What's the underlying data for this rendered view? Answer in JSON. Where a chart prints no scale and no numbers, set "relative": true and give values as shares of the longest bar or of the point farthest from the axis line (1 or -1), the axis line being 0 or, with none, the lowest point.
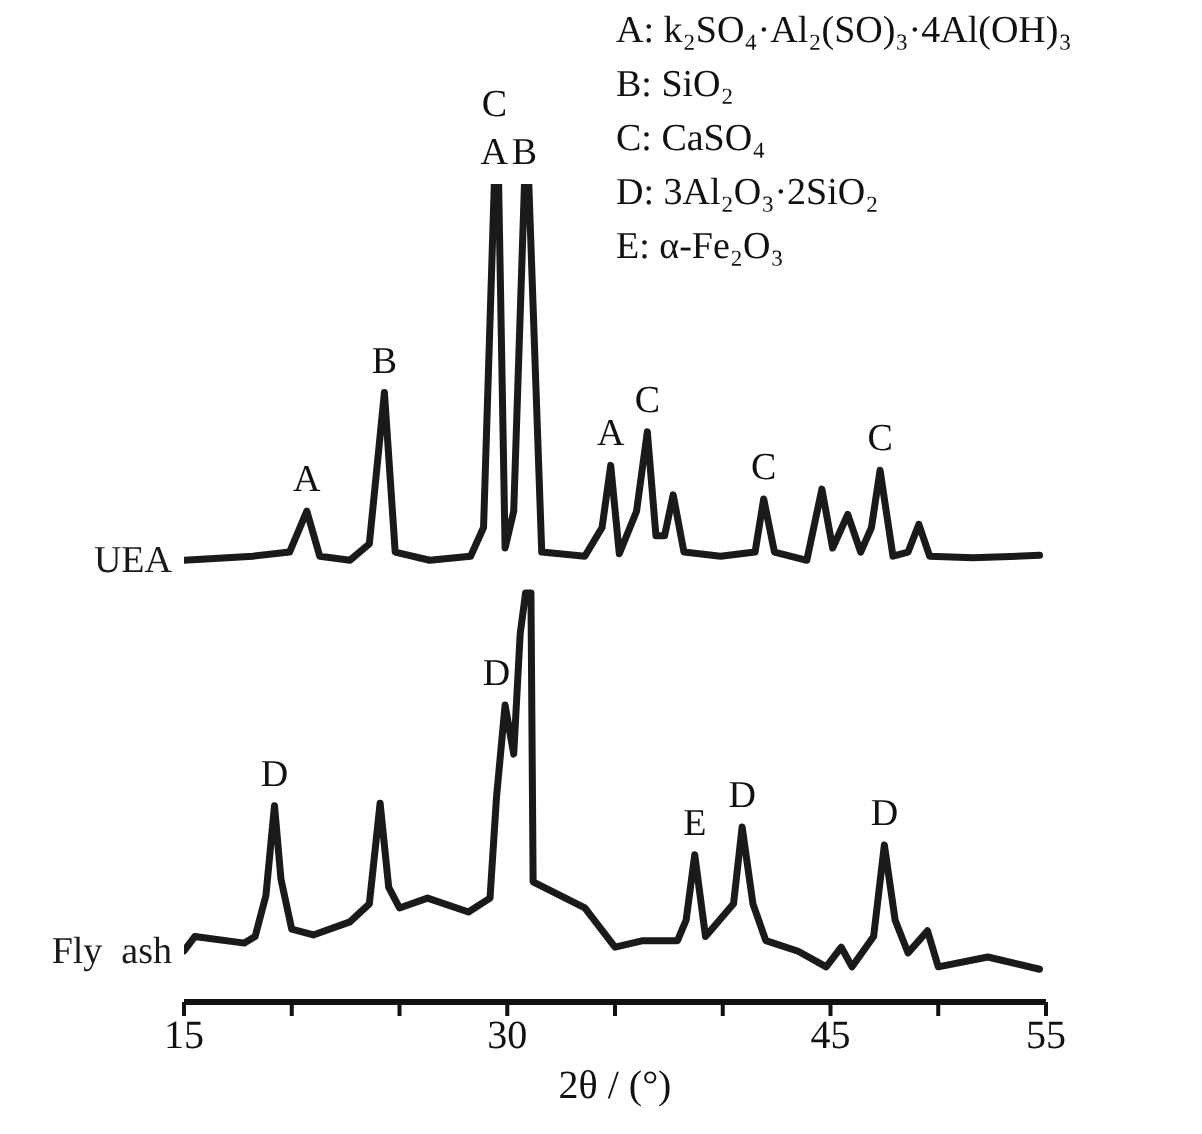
{
  "chart_data": {
    "type": "line",
    "relative": true,
    "xlabel": "2θ / (°)",
    "xlim": [
      15,
      55
    ],
    "xticks": [
      15,
      {
        "value": 20,
        "label": null
      },
      {
        "value": 25,
        "label": null
      },
      30,
      {
        "value": 35,
        "label": null
      },
      {
        "value": 40,
        "label": null
      },
      45,
      {
        "value": 50,
        "label": null
      },
      55
    ],
    "marker": "none",
    "legend": false,
    "series": [
      {
        "name": "UEA",
        "color": "#1a1a1a",
        "x": [
          15.0,
          18.2,
          19.9,
          20.7,
          21.3,
          22.7,
          23.6,
          24.3,
          24.8,
          26.4,
          28.3,
          28.9,
          29.4,
          29.6,
          29.9,
          30.3,
          30.8,
          31.0,
          31.6,
          33.6,
          34.4,
          34.8,
          35.2,
          36.0,
          36.5,
          36.9,
          37.3,
          37.7,
          38.2,
          39.9,
          41.5,
          41.9,
          42.4,
          43.9,
          44.6,
          45.1,
          45.8,
          46.4,
          46.9,
          47.3,
          47.9,
          48.6,
          49.1,
          49.6,
          51.6,
          54.7
        ],
        "values": [
          0.54,
          0.545,
          0.55,
          0.6,
          0.545,
          0.54,
          0.56,
          0.745,
          0.55,
          0.54,
          0.545,
          0.58,
          1.0,
          1.0,
          0.555,
          0.6,
          1.0,
          1.0,
          0.55,
          0.545,
          0.58,
          0.656,
          0.548,
          0.6,
          0.697,
          0.57,
          0.57,
          0.62,
          0.55,
          0.545,
          0.55,
          0.615,
          0.55,
          0.54,
          0.627,
          0.555,
          0.596,
          0.55,
          0.58,
          0.65,
          0.545,
          0.55,
          0.584,
          0.545,
          0.543,
          0.546
        ]
      },
      {
        "name": "Fly  ash",
        "color": "#1a1a1a",
        "x": [
          15.0,
          15.5,
          17.8,
          18.3,
          18.8,
          19.2,
          19.5,
          20.0,
          21.0,
          22.7,
          23.6,
          24.1,
          24.5,
          25.0,
          26.3,
          28.2,
          29.2,
          29.5,
          29.9,
          30.3,
          30.6,
          30.85,
          31.1,
          31.2,
          33.6,
          35.0,
          36.3,
          37.9,
          38.3,
          38.7,
          39.2,
          40.5,
          40.9,
          41.4,
          42.0,
          43.5,
          44.8,
          45.5,
          46.0,
          47.0,
          47.5,
          48.0,
          48.6,
          49.5,
          50.0,
          52.3,
          54.7
        ],
        "values": [
          0.0625,
          0.08,
          0.072,
          0.08,
          0.13,
          0.24,
          0.15,
          0.089,
          0.082,
          0.098,
          0.12,
          0.243,
          0.14,
          0.115,
          0.127,
          0.11,
          0.127,
          0.25,
          0.363,
          0.303,
          0.45,
          0.5,
          0.5,
          0.147,
          0.115,
          0.067,
          0.075,
          0.075,
          0.1,
          0.18,
          0.08,
          0.12,
          0.214,
          0.12,
          0.075,
          0.062,
          0.043,
          0.067,
          0.043,
          0.08,
          0.192,
          0.1,
          0.06,
          0.087,
          0.043,
          0.055,
          0.04
        ]
      }
    ],
    "annotations": [
      "A: k₂SO₄·Al₂(SO)₃·4Al(OH)₃",
      "B: SiO₂",
      "C: CaSO₄",
      "D: 3Al₂O₃·2SiO₂",
      "E: α-Fe₂O₃",
      {
        "text": "A",
        "x": 20.7,
        "y": 0.6
      },
      {
        "text": "B",
        "x": 24.3,
        "y": 0.745
      },
      {
        "text": "A",
        "x": 29.4,
        "y": 1.0
      },
      {
        "text": "C",
        "x": 29.4,
        "y": 1.0
      },
      {
        "text": "B",
        "x": 30.8,
        "y": 1.0
      },
      {
        "text": "A",
        "x": 34.8,
        "y": 0.656
      },
      {
        "text": "C",
        "x": 36.5,
        "y": 0.697
      },
      {
        "text": "C",
        "x": 41.9,
        "y": 0.615
      },
      {
        "text": "C",
        "x": 47.3,
        "y": 0.65
      },
      {
        "text": "D",
        "x": 19.2,
        "y": 0.24
      },
      {
        "text": "D",
        "x": 29.5,
        "y": 0.363
      },
      {
        "text": "E",
        "x": 38.7,
        "y": 0.18
      },
      {
        "text": "D",
        "x": 40.9,
        "y": 0.214
      },
      {
        "text": "D",
        "x": 47.5,
        "y": 0.192
      }
    ]
  }
}
